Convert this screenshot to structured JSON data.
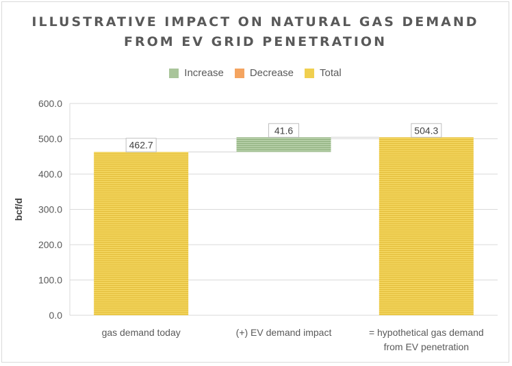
{
  "chart_data": {
    "type": "bar",
    "subtype": "waterfall",
    "title_lines": [
      "ILLUSTRATIVE IMPACT ON NATURAL GAS DEMAND",
      "FROM EV GRID PENETRATION"
    ],
    "legend": [
      {
        "label": "Increase",
        "color": "#a9c59a"
      },
      {
        "label": "Decrease",
        "color": "#f4a460"
      },
      {
        "label": "Total",
        "color": "#f0cf4f"
      }
    ],
    "ylabel": "bcf/d",
    "ylim": [
      0,
      600
    ],
    "yticks": [
      "0.0",
      "100.0",
      "200.0",
      "300.0",
      "400.0",
      "500.0",
      "600.0"
    ],
    "ytick_values": [
      0,
      100,
      200,
      300,
      400,
      500,
      600
    ],
    "categories": [
      [
        "gas demand today"
      ],
      [
        "(+) EV demand impact"
      ],
      [
        "= hypothetical gas demand",
        "from EV penetration"
      ]
    ],
    "bars": [
      {
        "kind": "total",
        "base": 0,
        "value": 462.7,
        "label": "462.7"
      },
      {
        "kind": "increase",
        "base": 462.7,
        "value": 41.6,
        "label": "41.6"
      },
      {
        "kind": "total",
        "base": 0,
        "value": 504.3,
        "label": "504.3"
      }
    ],
    "grid": true,
    "legend_position": "top"
  }
}
